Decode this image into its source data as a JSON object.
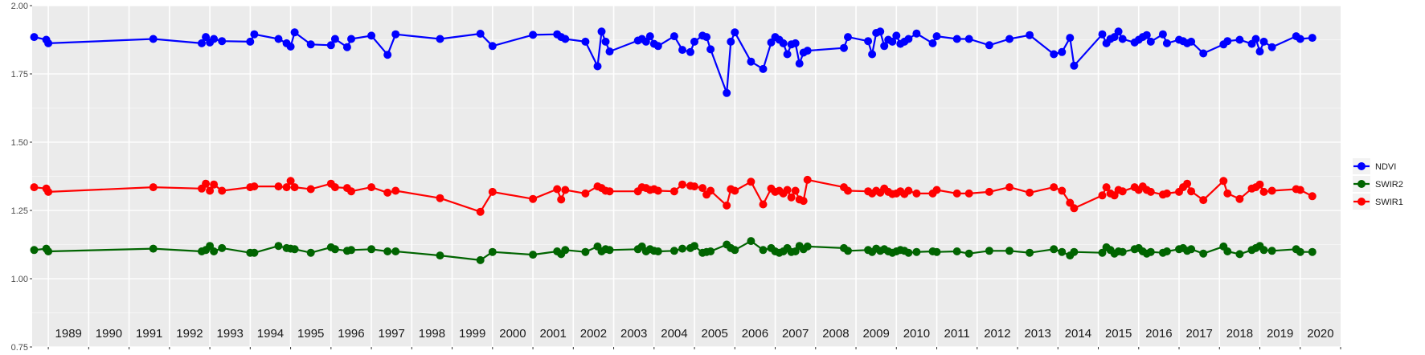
{
  "chart_data": {
    "type": "line",
    "title": "",
    "xlabel": "",
    "ylabel": "",
    "xlim": [
      1988.6,
      2021.0
    ],
    "ylim": [
      0.75,
      2.0
    ],
    "y_ticks": [
      "0.75",
      "1.00",
      "1.25",
      "1.50",
      "1.75",
      "2.00"
    ],
    "x_ticks": [
      "1989",
      "1990",
      "1991",
      "1992",
      "1993",
      "1994",
      "1995",
      "1996",
      "1997",
      "1998",
      "1999",
      "2000",
      "2001",
      "2002",
      "2003",
      "2004",
      "2005",
      "2006",
      "2007",
      "2008",
      "2009",
      "2010",
      "2011",
      "2012",
      "2013",
      "2014",
      "2015",
      "2016",
      "2017",
      "2018",
      "2019",
      "2020"
    ],
    "legend_position": "right",
    "grid": true,
    "series": [
      {
        "name": "NDVI",
        "color": "#0000ff",
        "x": [
          1988.65,
          1988.95,
          1989.0,
          1991.6,
          1992.8,
          1992.9,
          1993.0,
          1993.1,
          1993.3,
          1994.0,
          1994.1,
          1994.7,
          1994.9,
          1995.0,
          1995.1,
          1995.5,
          1996.0,
          1996.1,
          1996.4,
          1996.5,
          1997.0,
          1997.4,
          1997.6,
          1998.7,
          1999.7,
          2000.0,
          2001.0,
          2001.6,
          2001.7,
          2001.8,
          2002.3,
          2002.6,
          2002.7,
          2002.8,
          2002.9,
          2003.6,
          2003.7,
          2003.8,
          2003.9,
          2004.0,
          2004.1,
          2004.5,
          2004.7,
          2004.9,
          2005.0,
          2005.2,
          2005.3,
          2005.4,
          2005.8,
          2005.9,
          2006.0,
          2006.4,
          2006.7,
          2006.9,
          2007.0,
          2007.1,
          2007.2,
          2007.3,
          2007.4,
          2007.5,
          2007.6,
          2007.7,
          2007.8,
          2008.7,
          2008.8,
          2009.3,
          2009.4,
          2009.5,
          2009.6,
          2009.7,
          2009.8,
          2009.9,
          2010.0,
          2010.1,
          2010.2,
          2010.3,
          2010.5,
          2010.9,
          2011.0,
          2011.5,
          2011.8,
          2012.3,
          2012.8,
          2013.3,
          2013.9,
          2014.1,
          2014.3,
          2014.4,
          2015.1,
          2015.2,
          2015.3,
          2015.4,
          2015.5,
          2015.6,
          2015.9,
          2016.0,
          2016.1,
          2016.2,
          2016.3,
          2016.6,
          2016.7,
          2017.0,
          2017.1,
          2017.2,
          2017.3,
          2017.6,
          2018.1,
          2018.2,
          2018.5,
          2018.8,
          2018.9,
          2019.0,
          2019.1,
          2019.3,
          2019.9,
          2020.0,
          2020.3
        ],
        "values": [
          1.885,
          1.875,
          1.862,
          1.878,
          1.862,
          1.885,
          1.865,
          1.878,
          1.87,
          1.868,
          1.895,
          1.878,
          1.862,
          1.85,
          1.902,
          1.858,
          1.855,
          1.878,
          1.848,
          1.878,
          1.89,
          1.82,
          1.895,
          1.878,
          1.897,
          1.852,
          1.893,
          1.895,
          1.885,
          1.878,
          1.868,
          1.778,
          1.905,
          1.868,
          1.832,
          1.872,
          1.878,
          1.868,
          1.888,
          1.86,
          1.852,
          1.888,
          1.838,
          1.83,
          1.868,
          1.89,
          1.885,
          1.84,
          1.68,
          1.868,
          1.902,
          1.795,
          1.768,
          1.865,
          1.885,
          1.875,
          1.862,
          1.822,
          1.858,
          1.862,
          1.788,
          1.828,
          1.835,
          1.845,
          1.885,
          1.87,
          1.822,
          1.9,
          1.905,
          1.852,
          1.875,
          1.868,
          1.89,
          1.86,
          1.868,
          1.878,
          1.898,
          1.862,
          1.888,
          1.878,
          1.878,
          1.855,
          1.878,
          1.892,
          1.822,
          1.83,
          1.882,
          1.78,
          1.895,
          1.862,
          1.878,
          1.885,
          1.905,
          1.878,
          1.865,
          1.875,
          1.885,
          1.892,
          1.868,
          1.895,
          1.862,
          1.875,
          1.87,
          1.862,
          1.868,
          1.825,
          1.858,
          1.87,
          1.875,
          1.86,
          1.878,
          1.832,
          1.868,
          1.848,
          1.888,
          1.878,
          1.882
        ]
      },
      {
        "name": "SWIR1",
        "color": "#ff0000",
        "x": [
          1988.65,
          1988.95,
          1989.0,
          1991.6,
          1992.8,
          1992.9,
          1993.0,
          1993.1,
          1993.3,
          1994.0,
          1994.1,
          1994.7,
          1994.9,
          1995.0,
          1995.1,
          1995.5,
          1996.0,
          1996.1,
          1996.4,
          1996.5,
          1997.0,
          1997.4,
          1997.6,
          1998.7,
          1999.7,
          2000.0,
          2001.0,
          2001.6,
          2001.7,
          2001.8,
          2002.3,
          2002.6,
          2002.7,
          2002.8,
          2002.9,
          2003.6,
          2003.7,
          2003.8,
          2003.9,
          2004.0,
          2004.1,
          2004.5,
          2004.7,
          2004.9,
          2005.0,
          2005.2,
          2005.3,
          2005.4,
          2005.8,
          2005.9,
          2006.0,
          2006.4,
          2006.7,
          2006.9,
          2007.0,
          2007.1,
          2007.2,
          2007.3,
          2007.4,
          2007.5,
          2007.6,
          2007.7,
          2007.8,
          2008.7,
          2008.8,
          2009.3,
          2009.4,
          2009.5,
          2009.6,
          2009.7,
          2009.8,
          2009.9,
          2010.0,
          2010.1,
          2010.2,
          2010.3,
          2010.5,
          2010.9,
          2011.0,
          2011.5,
          2011.8,
          2012.3,
          2012.8,
          2013.3,
          2013.9,
          2014.1,
          2014.3,
          2014.4,
          2015.1,
          2015.2,
          2015.3,
          2015.4,
          2015.5,
          2015.6,
          2015.9,
          2016.0,
          2016.1,
          2016.2,
          2016.3,
          2016.6,
          2016.7,
          2017.0,
          2017.1,
          2017.2,
          2017.3,
          2017.6,
          2018.1,
          2018.2,
          2018.5,
          2018.8,
          2018.9,
          2019.0,
          2019.1,
          2019.3,
          2019.9,
          2020.0,
          2020.3
        ],
        "values": [
          1.335,
          1.33,
          1.318,
          1.335,
          1.33,
          1.348,
          1.322,
          1.345,
          1.322,
          1.335,
          1.338,
          1.338,
          1.335,
          1.358,
          1.335,
          1.328,
          1.348,
          1.335,
          1.332,
          1.32,
          1.335,
          1.315,
          1.322,
          1.295,
          1.245,
          1.318,
          1.292,
          1.328,
          1.29,
          1.325,
          1.312,
          1.338,
          1.332,
          1.322,
          1.32,
          1.32,
          1.335,
          1.332,
          1.325,
          1.328,
          1.322,
          1.32,
          1.345,
          1.34,
          1.338,
          1.332,
          1.308,
          1.322,
          1.268,
          1.328,
          1.322,
          1.355,
          1.272,
          1.33,
          1.318,
          1.322,
          1.312,
          1.325,
          1.298,
          1.322,
          1.29,
          1.285,
          1.362,
          1.335,
          1.322,
          1.32,
          1.312,
          1.322,
          1.315,
          1.33,
          1.318,
          1.31,
          1.312,
          1.32,
          1.31,
          1.322,
          1.312,
          1.312,
          1.325,
          1.312,
          1.312,
          1.318,
          1.335,
          1.315,
          1.335,
          1.322,
          1.278,
          1.258,
          1.305,
          1.335,
          1.312,
          1.305,
          1.325,
          1.32,
          1.335,
          1.325,
          1.338,
          1.325,
          1.318,
          1.308,
          1.312,
          1.318,
          1.335,
          1.348,
          1.32,
          1.288,
          1.358,
          1.312,
          1.292,
          1.33,
          1.335,
          1.345,
          1.318,
          1.322,
          1.328,
          1.325,
          1.302
        ]
      },
      {
        "name": "SWIR2",
        "color": "#006400",
        "x": [
          1988.65,
          1988.95,
          1989.0,
          1991.6,
          1992.8,
          1992.9,
          1993.0,
          1993.1,
          1993.3,
          1994.0,
          1994.1,
          1994.7,
          1994.9,
          1995.0,
          1995.1,
          1995.5,
          1996.0,
          1996.1,
          1996.4,
          1996.5,
          1997.0,
          1997.4,
          1997.6,
          1998.7,
          1999.7,
          2000.0,
          2001.0,
          2001.6,
          2001.7,
          2001.8,
          2002.3,
          2002.6,
          2002.7,
          2002.8,
          2002.9,
          2003.6,
          2003.7,
          2003.8,
          2003.9,
          2004.0,
          2004.1,
          2004.5,
          2004.7,
          2004.9,
          2005.0,
          2005.2,
          2005.3,
          2005.4,
          2005.8,
          2005.9,
          2006.0,
          2006.4,
          2006.7,
          2006.9,
          2007.0,
          2007.1,
          2007.2,
          2007.3,
          2007.4,
          2007.5,
          2007.6,
          2007.7,
          2007.8,
          2008.7,
          2008.8,
          2009.3,
          2009.4,
          2009.5,
          2009.6,
          2009.7,
          2009.8,
          2009.9,
          2010.0,
          2010.1,
          2010.2,
          2010.3,
          2010.5,
          2010.9,
          2011.0,
          2011.5,
          2011.8,
          2012.3,
          2012.8,
          2013.3,
          2013.9,
          2014.1,
          2014.3,
          2014.4,
          2015.1,
          2015.2,
          2015.3,
          2015.4,
          2015.5,
          2015.6,
          2015.9,
          2016.0,
          2016.1,
          2016.2,
          2016.3,
          2016.6,
          2016.7,
          2017.0,
          2017.1,
          2017.2,
          2017.3,
          2017.6,
          2018.1,
          2018.2,
          2018.5,
          2018.8,
          2018.9,
          2019.0,
          2019.1,
          2019.3,
          2019.9,
          2020.0,
          2020.3
        ],
        "values": [
          1.105,
          1.11,
          1.1,
          1.11,
          1.1,
          1.105,
          1.12,
          1.1,
          1.112,
          1.095,
          1.095,
          1.12,
          1.112,
          1.11,
          1.108,
          1.095,
          1.115,
          1.108,
          1.102,
          1.105,
          1.108,
          1.1,
          1.1,
          1.085,
          1.068,
          1.098,
          1.088,
          1.1,
          1.09,
          1.105,
          1.098,
          1.118,
          1.1,
          1.108,
          1.105,
          1.108,
          1.118,
          1.1,
          1.108,
          1.102,
          1.1,
          1.102,
          1.11,
          1.112,
          1.12,
          1.095,
          1.098,
          1.1,
          1.125,
          1.112,
          1.105,
          1.138,
          1.105,
          1.112,
          1.1,
          1.095,
          1.1,
          1.112,
          1.098,
          1.1,
          1.12,
          1.108,
          1.118,
          1.112,
          1.102,
          1.105,
          1.098,
          1.11,
          1.102,
          1.108,
          1.1,
          1.095,
          1.1,
          1.105,
          1.102,
          1.095,
          1.098,
          1.1,
          1.098,
          1.1,
          1.092,
          1.102,
          1.102,
          1.095,
          1.108,
          1.098,
          1.085,
          1.098,
          1.095,
          1.115,
          1.105,
          1.092,
          1.1,
          1.098,
          1.108,
          1.112,
          1.1,
          1.092,
          1.098,
          1.095,
          1.1,
          1.108,
          1.112,
          1.102,
          1.108,
          1.092,
          1.118,
          1.1,
          1.09,
          1.105,
          1.112,
          1.12,
          1.105,
          1.102,
          1.108,
          1.098,
          1.098
        ]
      }
    ],
    "legend_order": [
      "NDVI",
      "SWIR2",
      "SWIR1"
    ]
  }
}
